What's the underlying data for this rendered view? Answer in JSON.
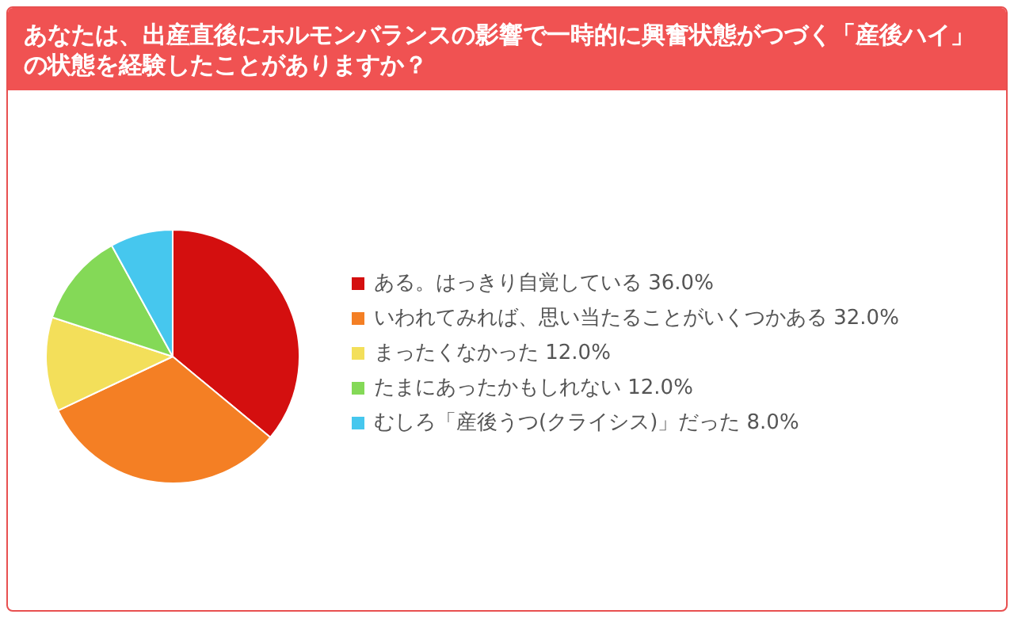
{
  "chart_data": {
    "type": "pie",
    "title": "あなたは、出産直後にホルモンバランスの影響で一時的に興奮状態がつづく「産後ハイ」の状態を経験したことがありますか？",
    "categories": [
      "ある。はっきり自覚している",
      "いわれてみれば、思い当たることがいくつかある",
      "まったくなかった",
      "たまにあったかもしれない",
      "むしろ「産後うつ(クライシス)」だった"
    ],
    "values": [
      36,
      32,
      12,
      12,
      8
    ],
    "value_labels": [
      "36.0%",
      "32.0%",
      "12.0%",
      "12.0%",
      "8.0%"
    ],
    "colors": [
      "#d40f0f",
      "#f47f24",
      "#f3df5a",
      "#84d957",
      "#46c7ee"
    ],
    "legend": "right"
  }
}
